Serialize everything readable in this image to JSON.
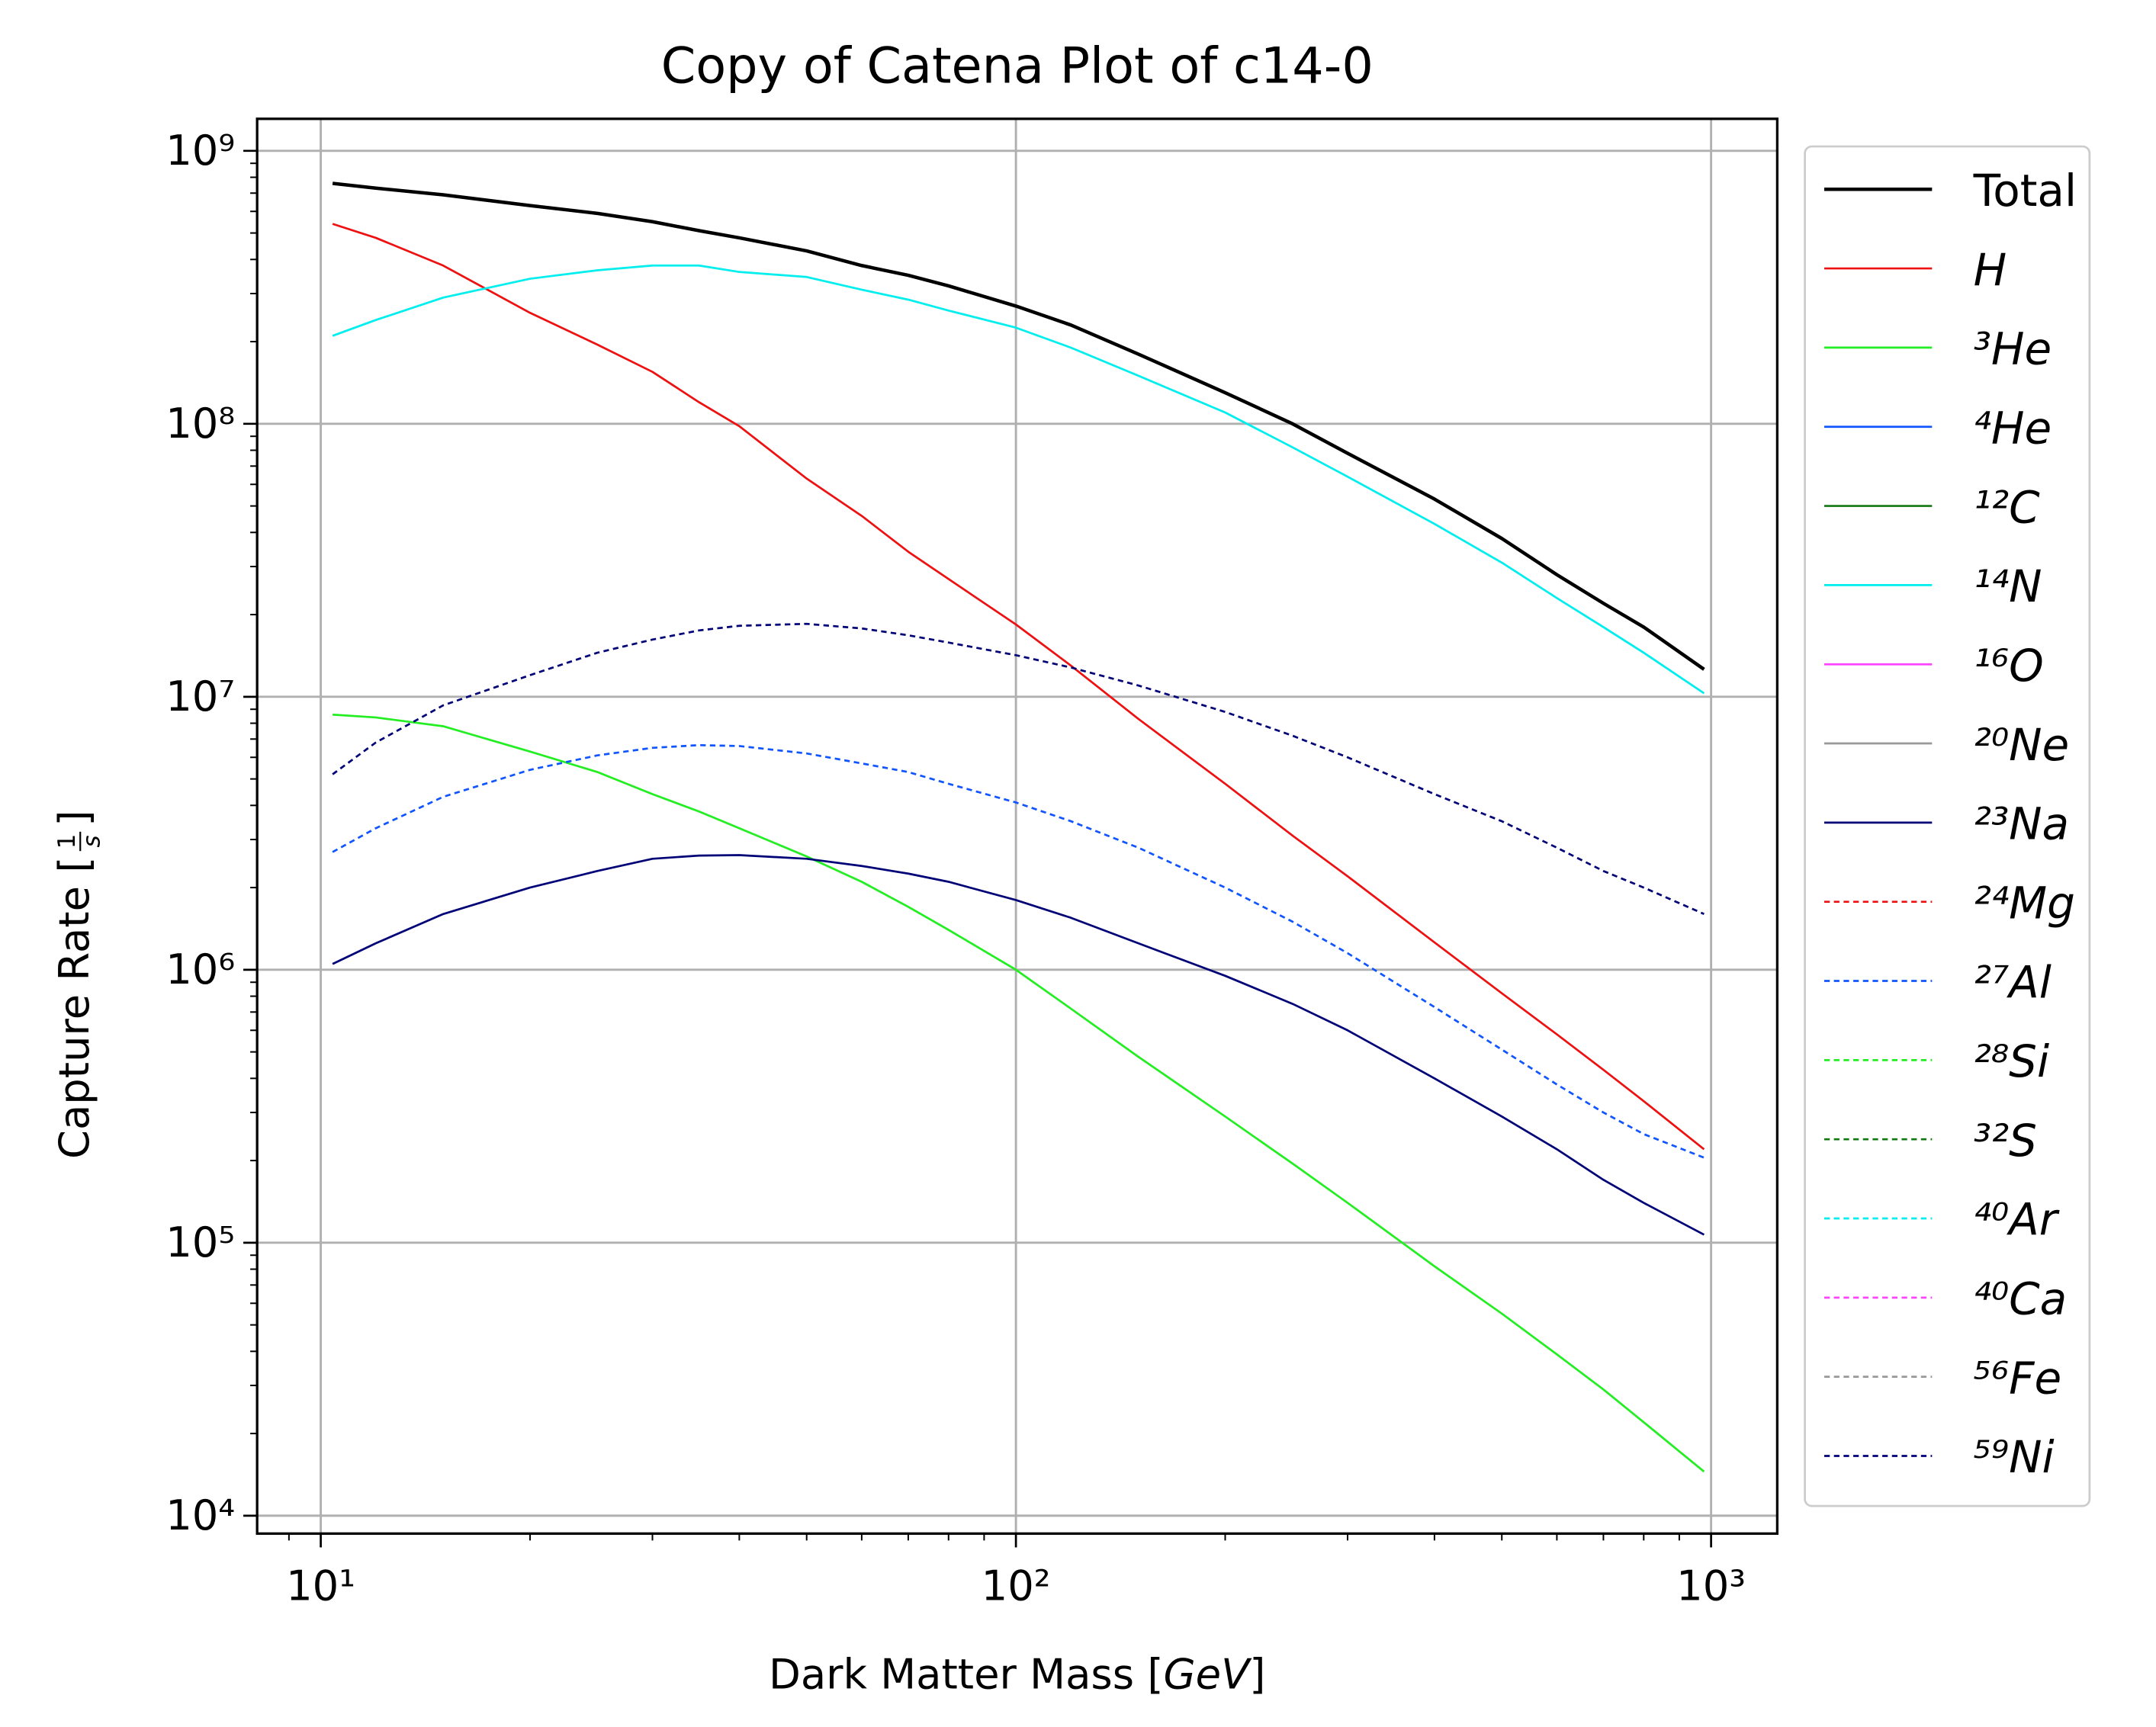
{
  "chart_data": {
    "type": "line",
    "title": "Copy of Catena Plot of c14-0",
    "x_label_parts": [
      "Dark Matter Mass [",
      "GeV",
      "]"
    ],
    "y_label_parts": [
      "Capture Rate [",
      "1",
      "s",
      "]"
    ],
    "xscale": "log",
    "yscale": "log",
    "grid": true,
    "legend": "outside right",
    "xlim": [
      8.1,
      1245
    ],
    "ylim": [
      8600,
      1310000000
    ],
    "xticks": [
      {
        "value": 10,
        "label": "10¹"
      },
      {
        "value": 100,
        "label": "10²"
      },
      {
        "value": 1000,
        "label": "10³"
      }
    ],
    "xminorticks": [
      9,
      20,
      30,
      40,
      50,
      60,
      70,
      80,
      90,
      200,
      300,
      400,
      500,
      600,
      700,
      800,
      900
    ],
    "yticks": [
      {
        "value": 10000,
        "label": "10⁴"
      },
      {
        "value": 100000,
        "label": "10⁵"
      },
      {
        "value": 1000000,
        "label": "10⁶"
      },
      {
        "value": 10000000,
        "label": "10⁷"
      },
      {
        "value": 100000000,
        "label": "10⁸"
      },
      {
        "value": 1000000000,
        "label": "10⁹"
      }
    ],
    "yminorticks": [
      20000.0,
      30000.0,
      40000.0,
      50000.0,
      60000.0,
      70000.0,
      80000.0,
      90000.0,
      200000.0,
      300000.0,
      400000.0,
      500000.0,
      600000.0,
      700000.0,
      800000.0,
      900000.0,
      2000000.0,
      3000000.0,
      4000000.0,
      5000000.0,
      6000000.0,
      7000000.0,
      8000000.0,
      9000000.0,
      20000000.0,
      30000000.0,
      40000000.0,
      50000000.0,
      60000000.0,
      70000000.0,
      80000000.0,
      90000000.0,
      200000000.0,
      300000000.0,
      400000000.0,
      500000000.0,
      600000000.0,
      700000000.0,
      800000000.0,
      900000000.0
    ],
    "x": [
      10.4,
      12,
      15,
      20,
      25,
      30,
      35,
      40,
      50,
      60,
      70,
      80,
      100,
      120,
      150,
      200,
      250,
      300,
      400,
      500,
      600,
      700,
      800,
      977
    ],
    "series": [
      {
        "name": "Total",
        "color": "#000000",
        "dash": false,
        "width": 2.5,
        "values": [
          760000000.0,
          730000000.0,
          690000000.0,
          630000000.0,
          590000000.0,
          550000000.0,
          510000000.0,
          480000000.0,
          430000000.0,
          380000000.0,
          350000000.0,
          320000000.0,
          270000000.0,
          230000000.0,
          180000000.0,
          130000000.0,
          100000000.0,
          78000000.0,
          53000000.0,
          38000000.0,
          28000000.0,
          22000000.0,
          18000000.0,
          12600000.0
        ]
      },
      {
        "name": "H",
        "color": "#ee1111",
        "dash": false,
        "width": 1.5,
        "values": [
          540000000.0,
          480000000.0,
          380000000.0,
          255000000.0,
          195000000.0,
          155000000.0,
          120000000.0,
          98000000.0,
          63000000.0,
          46000000.0,
          34000000.0,
          27000000.0,
          18400000.0,
          13000000.0,
          8300000.0,
          4800000.0,
          3100000.0,
          2200000.0,
          1260000.0,
          820000.0,
          580000.0,
          430000.0,
          330000.0,
          220000.0
        ]
      },
      {
        "name": "³He",
        "color": "#22ee22",
        "dash": false,
        "width": 1.5,
        "values": [
          8600000.0,
          8400000.0,
          7800000.0,
          6300000.0,
          5300000.0,
          4400000.0,
          3800000.0,
          3300000.0,
          2600000.0,
          2100000.0,
          1700000.0,
          1400000.0,
          1000000.0,
          720000.0,
          480000.0,
          290000.0,
          195000.0,
          140000.0,
          82000.0,
          55000.0,
          39000.0,
          29000.0,
          22000.0,
          14500.0
        ]
      },
      {
        "name": "⁴He",
        "color": "#1155ff",
        "dash": false,
        "width": 1.5
      },
      {
        "name": "¹²C",
        "color": "#117711",
        "dash": false,
        "width": 1.5
      },
      {
        "name": "¹⁴N",
        "color": "#00eeee",
        "dash": false,
        "width": 1.5,
        "values": [
          210000000.0,
          240000000.0,
          290000000.0,
          340000000.0,
          365000000.0,
          380000000.0,
          380000000.0,
          360000000.0,
          345000000.0,
          310000000.0,
          285000000.0,
          260000000.0,
          225000000.0,
          190000000.0,
          150000000.0,
          110000000.0,
          82000000.0,
          64000000.0,
          43000000.0,
          31000000.0,
          23000000.0,
          18000000.0,
          14500000.0,
          10300000.0
        ]
      },
      {
        "name": "¹⁶O",
        "color": "#ff44ff",
        "dash": false,
        "width": 1.5
      },
      {
        "name": "²⁰Ne",
        "color": "#999999",
        "dash": false,
        "width": 1.5
      },
      {
        "name": "²³Na",
        "color": "#000077",
        "dash": false,
        "width": 1.5,
        "values": [
          1050000.0,
          1250000.0,
          1600000.0,
          2000000.0,
          2300000.0,
          2550000.0,
          2620000.0,
          2630000.0,
          2550000.0,
          2400000.0,
          2250000.0,
          2100000.0,
          1800000.0,
          1550000.0,
          1250000.0,
          950000.0,
          750000.0,
          600000.0,
          400000.0,
          290000.0,
          220000.0,
          170000.0,
          140000.0,
          107000.0
        ]
      },
      {
        "name": "²⁴Mg",
        "color": "#ee1111",
        "dash": true,
        "width": 1.5
      },
      {
        "name": "²⁷Al",
        "color": "#1155ff",
        "dash": true,
        "width": 1.5,
        "values": [
          2700000.0,
          3300000.0,
          4300000.0,
          5400000.0,
          6100000.0,
          6500000.0,
          6650000.0,
          6600000.0,
          6200000.0,
          5700000.0,
          5300000.0,
          4800000.0,
          4100000.0,
          3500000.0,
          2800000.0,
          2000000.0,
          1500000.0,
          1150000.0,
          730000.0,
          510000.0,
          380000.0,
          300000.0,
          250000.0,
          205000.0
        ]
      },
      {
        "name": "²⁸Si",
        "color": "#22ee22",
        "dash": true,
        "width": 1.5
      },
      {
        "name": "³²S",
        "color": "#117711",
        "dash": true,
        "width": 1.5
      },
      {
        "name": "⁴⁰Ar",
        "color": "#00eeee",
        "dash": true,
        "width": 1.5
      },
      {
        "name": "⁴⁰Ca",
        "color": "#ff44ff",
        "dash": true,
        "width": 1.5
      },
      {
        "name": "⁵⁶Fe",
        "color": "#999999",
        "dash": true,
        "width": 1.5
      },
      {
        "name": "⁵⁹Ni",
        "color": "#000077",
        "dash": true,
        "width": 1.5,
        "values": [
          5200000.0,
          6800000.0,
          9300000.0,
          12000000.0,
          14500000.0,
          16200000.0,
          17500000.0,
          18200000.0,
          18500000.0,
          17800000.0,
          16800000.0,
          15800000.0,
          14200000.0,
          12800000.0,
          11000000.0,
          8800000.0,
          7200000.0,
          6000000.0,
          4400000.0,
          3500000.0,
          2800000.0,
          2300000.0,
          2000000.0,
          1600000.0
        ]
      }
    ]
  }
}
